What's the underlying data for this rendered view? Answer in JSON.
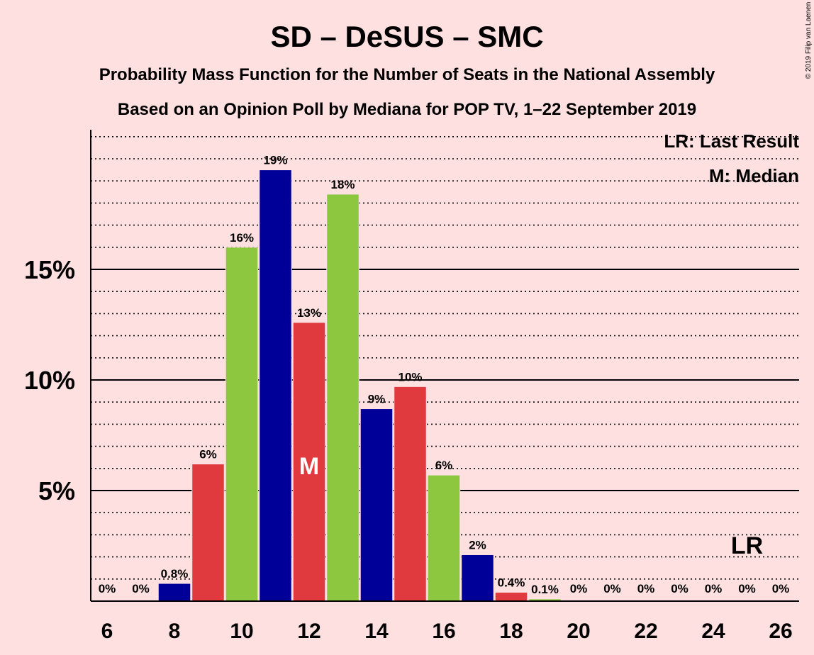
{
  "chart_data": {
    "type": "bar",
    "title": "SD – DeSUS – SMC",
    "subtitle1": "Probability Mass Function for the Number of Seats in the National Assembly",
    "subtitle2": "Based on an Opinion Poll by Mediana for POP TV, 1–22 September 2019",
    "copyright": "© 2019 Filip van Laenen",
    "x": [
      6,
      7,
      8,
      9,
      10,
      11,
      12,
      13,
      14,
      15,
      16,
      17,
      18,
      19,
      20,
      21,
      22,
      23,
      24,
      25,
      26
    ],
    "values": [
      0,
      0,
      0.8,
      6.2,
      16.0,
      19.5,
      12.6,
      18.4,
      8.7,
      9.7,
      5.7,
      2.1,
      0.4,
      0.1,
      0,
      0,
      0,
      0,
      0,
      0,
      0
    ],
    "labels": [
      "0%",
      "0%",
      "0.8%",
      "6%",
      "16%",
      "19%",
      "13%",
      "18%",
      "9%",
      "10%",
      "6%",
      "2%",
      "0.4%",
      "0.1%",
      "0%",
      "0%",
      "0%",
      "0%",
      "0%",
      "0%",
      "0%"
    ],
    "x_tick_labels": [
      "6",
      "8",
      "10",
      "12",
      "14",
      "16",
      "18",
      "20",
      "22",
      "24",
      "26"
    ],
    "y_tick_labels": [
      "5%",
      "10%",
      "15%"
    ],
    "y_ticks": [
      5,
      10,
      15
    ],
    "ylim": [
      0,
      21.3
    ],
    "xlim": [
      5.5,
      26.5
    ],
    "grid": true,
    "dotted_gridlines_step": 1,
    "median_seat": 12,
    "median_mark": "M",
    "last_result_seat": 25,
    "last_result_mark": "LR",
    "legend": {
      "placement": "top-right",
      "items": [
        "LR: Last Result",
        "M: Median"
      ]
    },
    "colors": {
      "navy": "#000099",
      "red": "#E0393E",
      "green": "#8DC63F",
      "background": "#FFE0E0"
    }
  }
}
